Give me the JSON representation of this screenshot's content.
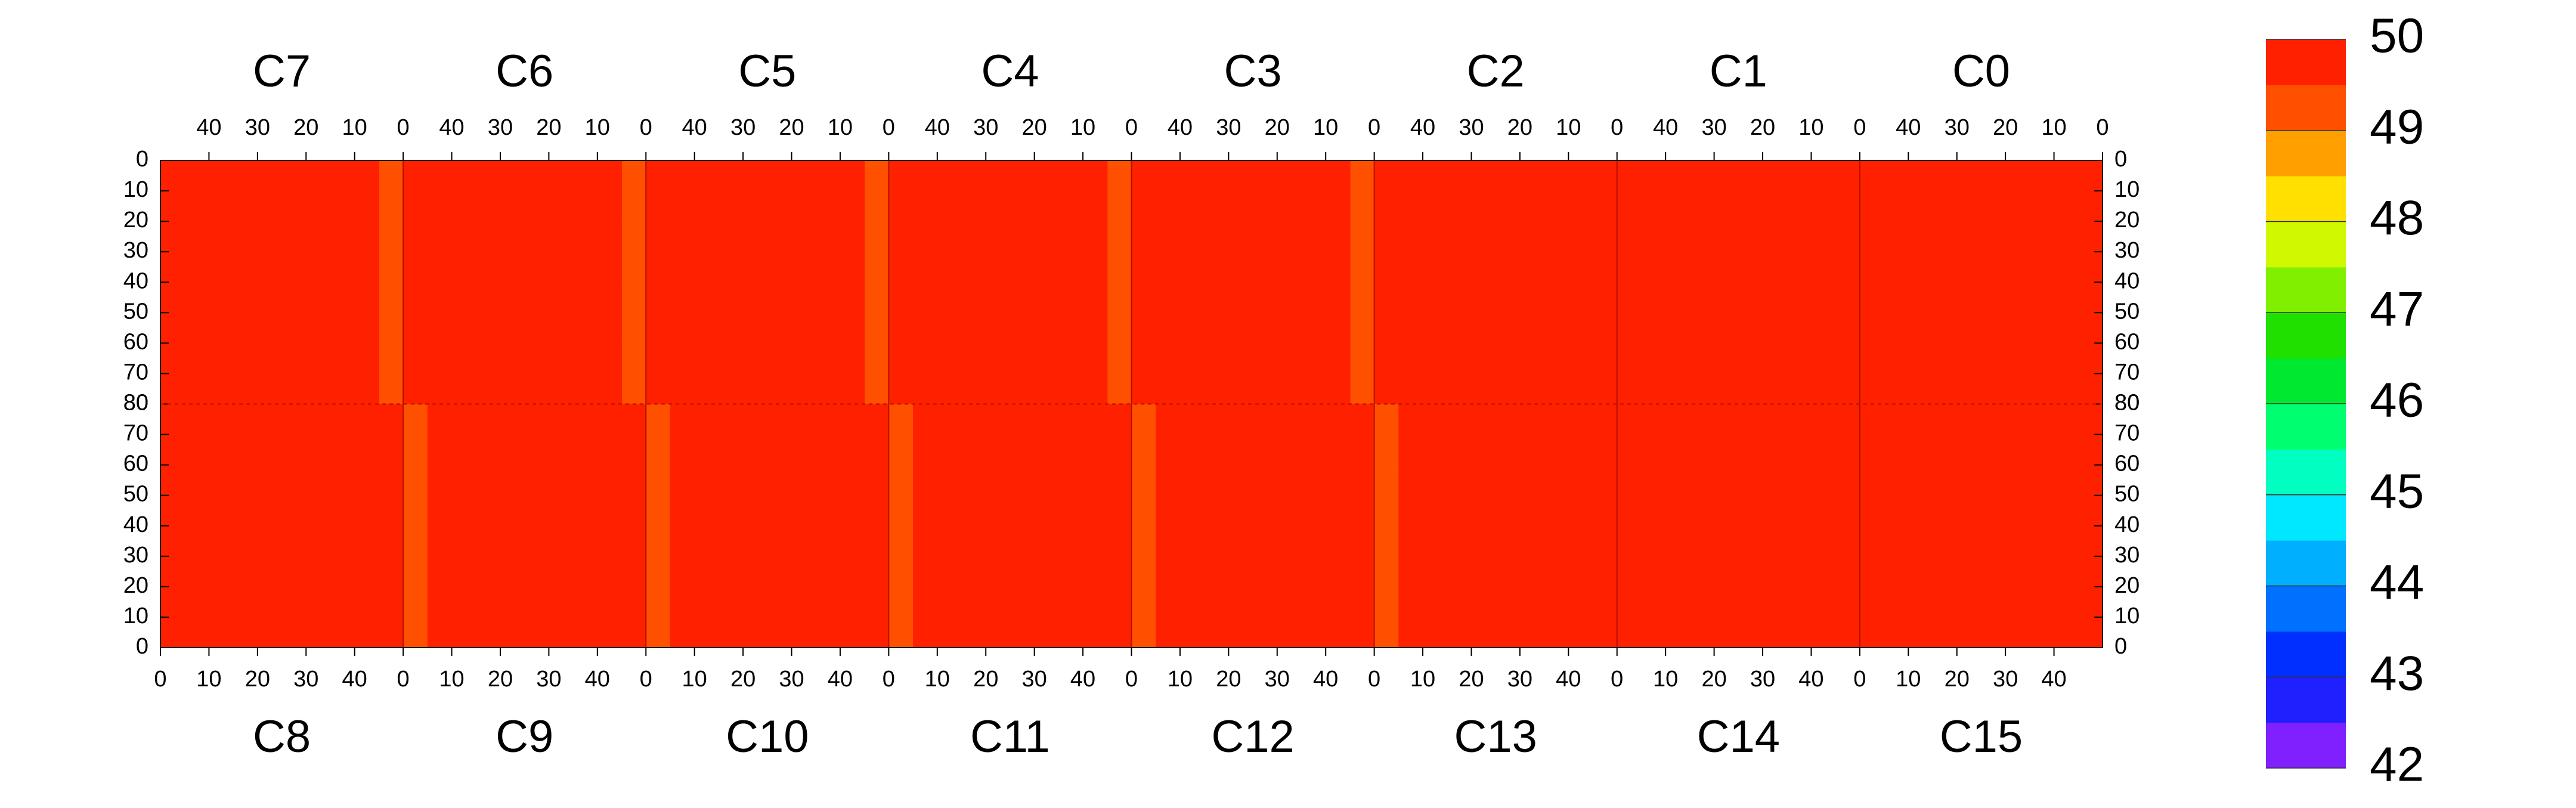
{
  "chart_data": {
    "type": "heatmap",
    "top": [
      {
        "name": "C7",
        "values": [
          [
            49.2,
            49.6,
            49.7,
            49.7,
            49.6,
            49.7,
            49.7,
            49.6,
            49.7,
            49.6
          ],
          [
            49.3,
            49.7,
            49.6,
            49.7,
            49.7,
            49.6,
            49.7,
            49.7,
            49.6,
            49.7
          ],
          [
            49.1,
            49.7,
            49.7,
            49.6,
            49.7,
            49.7,
            49.6,
            49.7,
            49.7,
            49.6
          ],
          [
            49.3,
            49.6,
            49.7,
            49.7,
            49.6,
            49.7,
            49.7,
            49.6,
            49.6,
            49.7
          ]
        ]
      },
      {
        "name": "C6",
        "values": [
          [
            49.4,
            49.7,
            49.7,
            49.6,
            49.7,
            49.7,
            49.7,
            49.6,
            49.7,
            49.7
          ],
          [
            49.3,
            49.7,
            49.6,
            49.7,
            49.7,
            49.7,
            49.6,
            49.7,
            49.7,
            49.6
          ],
          [
            49.4,
            49.6,
            49.7,
            49.7,
            49.6,
            49.7,
            49.7,
            49.7,
            49.6,
            49.7
          ],
          [
            49.4,
            49.7,
            49.7,
            49.6,
            49.7,
            49.6,
            49.7,
            49.7,
            49.7,
            49.6
          ]
        ]
      },
      {
        "name": "C5",
        "values": [
          [
            49.2,
            49.7,
            49.6,
            49.7,
            49.7,
            49.6,
            49.7,
            49.7,
            49.6,
            49.7
          ],
          [
            49.3,
            49.6,
            49.7,
            49.7,
            49.6,
            49.7,
            49.7,
            49.6,
            49.7,
            49.7
          ],
          [
            49.3,
            49.7,
            49.7,
            49.6,
            49.7,
            49.7,
            49.6,
            49.7,
            49.7,
            49.6
          ],
          [
            49.2,
            49.7,
            49.6,
            49.7,
            49.7,
            49.6,
            49.7,
            49.7,
            49.6,
            49.7
          ]
        ]
      },
      {
        "name": "C4",
        "values": [
          [
            49.4,
            49.7,
            49.7,
            49.7,
            49.6,
            49.7,
            49.7,
            49.7,
            49.6,
            49.7
          ],
          [
            49.4,
            49.7,
            49.6,
            49.7,
            49.7,
            49.7,
            49.6,
            49.7,
            49.7,
            49.7
          ],
          [
            49.3,
            49.6,
            49.7,
            49.7,
            49.7,
            49.6,
            49.7,
            49.7,
            49.7,
            49.6
          ],
          [
            49.4,
            49.7,
            49.7,
            49.6,
            49.7,
            49.7,
            49.7,
            49.6,
            49.7,
            49.7
          ]
        ]
      },
      {
        "name": "C3",
        "values": [
          [
            49.1,
            49.7,
            49.7,
            49.6,
            49.7,
            49.7,
            49.6,
            49.7,
            49.7,
            49.6
          ],
          [
            49.2,
            49.6,
            49.7,
            49.7,
            49.6,
            49.7,
            49.7,
            49.7,
            49.6,
            49.7
          ],
          [
            49.2,
            49.7,
            49.6,
            49.7,
            49.7,
            49.6,
            49.7,
            49.7,
            49.7,
            49.6
          ],
          [
            49.3,
            49.7,
            49.7,
            49.6,
            49.7,
            49.7,
            49.6,
            49.7,
            49.7,
            49.7
          ]
        ]
      },
      {
        "name": "C2",
        "values": [
          [
            50,
            50,
            50,
            50,
            49.8,
            49.7,
            49.7,
            49.6,
            49.7,
            49.6
          ],
          [
            50,
            50,
            50,
            50,
            49.8,
            49.7,
            49.6,
            49.7,
            49.7,
            49.7
          ],
          [
            50,
            50,
            50,
            50,
            49.8,
            49.6,
            49.7,
            49.7,
            49.6,
            49.7
          ],
          [
            50,
            50,
            50,
            50,
            49.9,
            49.7,
            49.7,
            49.6,
            49.7,
            49.7
          ]
        ]
      },
      {
        "name": "C1",
        "values": [
          [
            49.8,
            50,
            50,
            50,
            50,
            50,
            50,
            50,
            50,
            50
          ],
          [
            49.7,
            50,
            50,
            50,
            50,
            50,
            50,
            50,
            50,
            50
          ],
          [
            49.8,
            50,
            50,
            50,
            50,
            50,
            50,
            50,
            50,
            50
          ],
          [
            49.6,
            50,
            50,
            50,
            50,
            50,
            50,
            50,
            50,
            50
          ]
        ]
      },
      {
        "name": "C0",
        "values": [
          [
            49.9,
            49.9,
            49.8,
            49.9,
            49.8,
            49.9,
            49.9,
            49.8,
            49.9,
            49.9
          ],
          [
            49.9,
            49.8,
            49.9,
            49.9,
            49.9,
            49.8,
            49.9,
            49.9,
            49.8,
            49.9
          ],
          [
            49.7,
            49.9,
            49.9,
            49.8,
            49.9,
            49.9,
            49.8,
            49.9,
            49.9,
            49.8
          ],
          [
            49.8,
            49.9,
            49.8,
            49.9,
            49.9,
            49.9,
            49.9,
            49.8,
            49.9,
            49.9
          ]
        ]
      }
    ],
    "bottom": [
      {
        "name": "C8",
        "values": [
          [
            49.6,
            49.7,
            49.7,
            49.6,
            49.7,
            49.7,
            49.6,
            49.7,
            49.7,
            49.6
          ],
          [
            49.7,
            49.6,
            49.7,
            49.7,
            49.7,
            49.6,
            49.7,
            49.7,
            49.6,
            49.7
          ],
          [
            49.6,
            49.7,
            49.6,
            49.7,
            49.7,
            49.7,
            49.7,
            49.6,
            49.7,
            49.7
          ],
          [
            49.7,
            49.7,
            49.7,
            49.6,
            49.7,
            49.6,
            49.7,
            49.7,
            49.7,
            49.6
          ]
        ]
      },
      {
        "name": "C9",
        "values": [
          [
            49.3,
            49.7,
            49.6,
            49.7,
            49.7,
            49.6,
            49.7,
            49.7,
            49.6,
            49.6
          ],
          [
            49.2,
            49.6,
            49.7,
            49.7,
            49.6,
            49.7,
            49.7,
            49.6,
            49.7,
            49.6
          ],
          [
            49.1,
            49.7,
            49.7,
            49.6,
            49.7,
            49.7,
            49.6,
            49.7,
            49.7,
            49.7
          ],
          [
            49.3,
            49.7,
            49.6,
            49.7,
            49.7,
            49.6,
            49.7,
            49.7,
            49.6,
            49.6
          ]
        ]
      },
      {
        "name": "C10",
        "values": [
          [
            49.3,
            49.7,
            49.7,
            49.6,
            49.7,
            49.7,
            49.7,
            49.6,
            49.7,
            49.6
          ],
          [
            49.2,
            49.7,
            49.6,
            49.7,
            49.7,
            49.6,
            49.7,
            49.7,
            49.7,
            49.7
          ],
          [
            49.3,
            49.6,
            49.7,
            49.7,
            49.6,
            49.7,
            49.7,
            49.7,
            49.6,
            49.7
          ],
          [
            49.4,
            49.7,
            49.7,
            49.6,
            49.7,
            49.7,
            49.6,
            49.7,
            49.7,
            49.7
          ]
        ]
      },
      {
        "name": "C11",
        "values": [
          [
            49.4,
            49.7,
            49.7,
            49.7,
            49.6,
            49.7,
            49.7,
            49.7,
            49.6,
            49.7
          ],
          [
            49.2,
            49.7,
            49.6,
            49.7,
            49.7,
            49.7,
            49.6,
            49.7,
            49.7,
            49.7
          ],
          [
            49.1,
            49.6,
            49.7,
            49.7,
            49.7,
            49.6,
            49.7,
            49.7,
            49.7,
            49.6
          ],
          [
            49.3,
            49.7,
            49.7,
            49.6,
            49.7,
            49.7,
            49.7,
            49.6,
            49.7,
            49.7
          ]
        ]
      },
      {
        "name": "C12",
        "values": [
          [
            49.3,
            49.7,
            49.7,
            49.6,
            49.7,
            49.7,
            49.6,
            49.7,
            49.7,
            49.6
          ],
          [
            49.4,
            49.6,
            49.7,
            49.7,
            49.6,
            49.7,
            49.7,
            49.7,
            49.6,
            49.7
          ],
          [
            49.3,
            49.7,
            49.6,
            49.7,
            49.7,
            49.6,
            49.7,
            49.7,
            49.7,
            49.6
          ],
          [
            49.4,
            49.7,
            49.7,
            49.6,
            49.7,
            49.7,
            49.6,
            49.7,
            49.7,
            49.7
          ]
        ]
      },
      {
        "name": "C13",
        "values": [
          [
            49.3,
            49.7,
            49.7,
            49.6,
            49.8,
            50,
            50,
            50,
            50,
            50
          ],
          [
            49.2,
            49.6,
            49.7,
            49.7,
            49.8,
            50,
            50,
            50,
            50,
            50
          ],
          [
            49.1,
            49.7,
            49.6,
            49.7,
            49.8,
            50,
            50,
            50,
            50,
            50
          ],
          [
            49.3,
            49.7,
            49.7,
            49.6,
            49.9,
            50,
            50,
            50,
            50,
            50
          ]
        ]
      },
      {
        "name": "C14",
        "values": [
          [
            50,
            50,
            49.9,
            50,
            50,
            50,
            50,
            50,
            50,
            50
          ],
          [
            50,
            49.9,
            50,
            50,
            50,
            50,
            50,
            50,
            50,
            50
          ],
          [
            50,
            50,
            50,
            50,
            49.9,
            50,
            50,
            50,
            50,
            50
          ],
          [
            50,
            50,
            50,
            50,
            50,
            50,
            50,
            50,
            50,
            50
          ]
        ]
      },
      {
        "name": "C15",
        "values": [
          [
            49.6,
            50,
            50,
            50,
            50,
            50,
            50,
            50,
            50,
            50
          ],
          [
            49.5,
            50,
            50,
            50,
            50,
            50,
            50,
            50,
            50,
            50
          ],
          [
            49.6,
            50,
            50,
            50,
            50,
            50,
            50,
            50,
            50,
            50
          ],
          [
            49.7,
            50,
            50,
            50,
            50,
            50,
            50,
            50,
            50,
            50
          ]
        ]
      }
    ],
    "xlim": [
      0,
      50
    ],
    "xticks": [
      0,
      10,
      20,
      30,
      40
    ],
    "ylim": [
      0,
      80
    ],
    "yticks": [
      0,
      10,
      20,
      30,
      40,
      50,
      60,
      70,
      80
    ],
    "zlim": [
      42,
      50
    ],
    "zticks": [
      42,
      43,
      44,
      45,
      46,
      47,
      48,
      49,
      50
    ],
    "colors": [
      "#8020ff",
      "#2020ff",
      "#0030ff",
      "#0070ff",
      "#00b0ff",
      "#00e8ff",
      "#00ffc0",
      "#00ff70",
      "#00e830",
      "#20e000",
      "#80f000",
      "#d0f800",
      "#ffe000",
      "#ffa000",
      "#ff5000",
      "#ff2000"
    ]
  }
}
